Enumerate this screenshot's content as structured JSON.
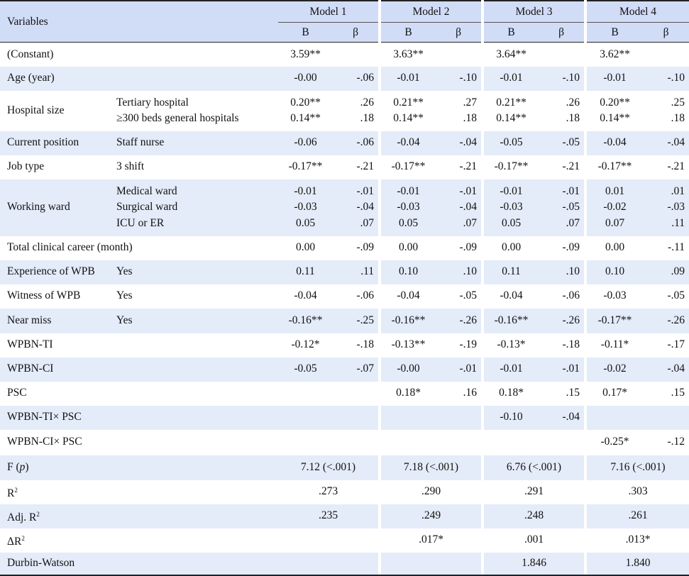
{
  "header": {
    "variables": "Variables",
    "models": [
      "Model 1",
      "Model 2",
      "Model 3",
      "Model 4"
    ],
    "sub": [
      "B",
      "β"
    ]
  },
  "rows": [
    {
      "var": "(Constant)",
      "cats": [
        ""
      ],
      "m": [
        [
          [
            "3.59**"
          ],
          [
            ""
          ]
        ],
        [
          [
            "3.63**"
          ],
          [
            ""
          ]
        ],
        [
          [
            "3.64**"
          ],
          [
            ""
          ]
        ],
        [
          [
            "3.62**"
          ],
          [
            ""
          ]
        ]
      ],
      "shade": "a"
    },
    {
      "var": "Age (year)",
      "cats": [
        ""
      ],
      "m": [
        [
          [
            "-0.00"
          ],
          [
            "-.06"
          ]
        ],
        [
          [
            "-0.01"
          ],
          [
            "-.10"
          ]
        ],
        [
          [
            "-0.01"
          ],
          [
            "-.10"
          ]
        ],
        [
          [
            "-0.01"
          ],
          [
            "-.10"
          ]
        ]
      ],
      "shade": "b"
    },
    {
      "var": "Hospital size",
      "cats": [
        "Tertiary hospital",
        "≥300 beds general hospitals"
      ],
      "m": [
        [
          [
            "0.20**",
            "0.14**"
          ],
          [
            ".26",
            ".18"
          ]
        ],
        [
          [
            "0.21**",
            "0.14**"
          ],
          [
            ".27",
            ".18"
          ]
        ],
        [
          [
            "0.21**",
            "0.14**"
          ],
          [
            ".26",
            ".18"
          ]
        ],
        [
          [
            "0.20**",
            "0.14**"
          ],
          [
            ".25",
            ".18"
          ]
        ]
      ],
      "shade": "a"
    },
    {
      "var": "Current position",
      "cats": [
        "Staff nurse"
      ],
      "m": [
        [
          [
            "-0.06"
          ],
          [
            "-.06"
          ]
        ],
        [
          [
            "-0.04"
          ],
          [
            "-.04"
          ]
        ],
        [
          [
            "-0.05"
          ],
          [
            "-.05"
          ]
        ],
        [
          [
            "-0.04"
          ],
          [
            "-.04"
          ]
        ]
      ],
      "shade": "b"
    },
    {
      "var": "Job type",
      "cats": [
        "3 shift"
      ],
      "m": [
        [
          [
            "-0.17**"
          ],
          [
            "-.21"
          ]
        ],
        [
          [
            "-0.17**"
          ],
          [
            "-.21"
          ]
        ],
        [
          [
            "-0.17**"
          ],
          [
            "-.21"
          ]
        ],
        [
          [
            "-0.17**"
          ],
          [
            "-.21"
          ]
        ]
      ],
      "shade": "a"
    },
    {
      "var": "Working ward",
      "cats": [
        "Medical ward",
        "Surgical ward",
        "ICU or ER"
      ],
      "m": [
        [
          [
            "-0.01",
            "-0.03",
            "0.05"
          ],
          [
            "-.01",
            "-.04",
            ".07"
          ]
        ],
        [
          [
            "-0.01",
            "-0.03",
            "0.05"
          ],
          [
            "-.01",
            "-.04",
            ".07"
          ]
        ],
        [
          [
            "-0.01",
            "-0.03",
            "0.05"
          ],
          [
            "-.01",
            "-.05",
            ".07"
          ]
        ],
        [
          [
            "0.01",
            "-0.02",
            "0.07"
          ],
          [
            ".01",
            "-.03",
            ".11"
          ]
        ]
      ],
      "shade": "b"
    },
    {
      "var": "Total clinical career (month)",
      "cats": [
        ""
      ],
      "m": [
        [
          [
            "0.00"
          ],
          [
            "-.09"
          ]
        ],
        [
          [
            "0.00"
          ],
          [
            "-.09"
          ]
        ],
        [
          [
            "0.00"
          ],
          [
            "-.09"
          ]
        ],
        [
          [
            "0.00"
          ],
          [
            "-.11"
          ]
        ]
      ],
      "shade": "a"
    },
    {
      "var": "Experience of WPB",
      "cats": [
        "Yes"
      ],
      "m": [
        [
          [
            "0.11"
          ],
          [
            ".11"
          ]
        ],
        [
          [
            "0.10"
          ],
          [
            ".10"
          ]
        ],
        [
          [
            "0.11"
          ],
          [
            ".10"
          ]
        ],
        [
          [
            "0.10"
          ],
          [
            ".09"
          ]
        ]
      ],
      "shade": "b"
    },
    {
      "var": "Witness of WPB",
      "cats": [
        "Yes"
      ],
      "m": [
        [
          [
            "-0.04"
          ],
          [
            "-.06"
          ]
        ],
        [
          [
            "-0.04"
          ],
          [
            "-.05"
          ]
        ],
        [
          [
            "-0.04"
          ],
          [
            "-.06"
          ]
        ],
        [
          [
            "-0.03"
          ],
          [
            "-.05"
          ]
        ]
      ],
      "shade": "a"
    },
    {
      "var": "Near miss",
      "cats": [
        "Yes"
      ],
      "m": [
        [
          [
            "-0.16**"
          ],
          [
            "-.25"
          ]
        ],
        [
          [
            "-0.16**"
          ],
          [
            "-.26"
          ]
        ],
        [
          [
            "-0.16**"
          ],
          [
            "-.26"
          ]
        ],
        [
          [
            "-0.17**"
          ],
          [
            "-.26"
          ]
        ]
      ],
      "shade": "b"
    },
    {
      "var": "WPBN-TI",
      "cats": [
        ""
      ],
      "m": [
        [
          [
            "-0.12*"
          ],
          [
            "-.18"
          ]
        ],
        [
          [
            "-0.13**"
          ],
          [
            "-.19"
          ]
        ],
        [
          [
            "-0.13*"
          ],
          [
            "-.18"
          ]
        ],
        [
          [
            "-0.11*"
          ],
          [
            "-.17"
          ]
        ]
      ],
      "shade": "a"
    },
    {
      "var": "WPBN-CI",
      "cats": [
        ""
      ],
      "m": [
        [
          [
            "-0.05"
          ],
          [
            "-.07"
          ]
        ],
        [
          [
            "-0.00"
          ],
          [
            "-.01"
          ]
        ],
        [
          [
            "-0.01"
          ],
          [
            "-.01"
          ]
        ],
        [
          [
            "-0.02"
          ],
          [
            "-.04"
          ]
        ]
      ],
      "shade": "b"
    },
    {
      "var": "PSC",
      "cats": [
        ""
      ],
      "m": [
        [
          [
            ""
          ],
          [
            ""
          ]
        ],
        [
          [
            "0.18*"
          ],
          [
            ".16"
          ]
        ],
        [
          [
            "0.18*"
          ],
          [
            ".15"
          ]
        ],
        [
          [
            "0.17*"
          ],
          [
            ".15"
          ]
        ]
      ],
      "shade": "a"
    },
    {
      "var": "WPBN-TI× PSC",
      "cats": [
        ""
      ],
      "m": [
        [
          [
            ""
          ],
          [
            ""
          ]
        ],
        [
          [
            ""
          ],
          [
            ""
          ]
        ],
        [
          [
            "-0.10"
          ],
          [
            "-.04"
          ]
        ],
        [
          [
            ""
          ],
          [
            ""
          ]
        ]
      ],
      "shade": "b"
    },
    {
      "var": "WPBN-CI× PSC",
      "cats": [
        ""
      ],
      "m": [
        [
          [
            ""
          ],
          [
            ""
          ]
        ],
        [
          [
            ""
          ],
          [
            ""
          ]
        ],
        [
          [
            ""
          ],
          [
            ""
          ]
        ],
        [
          [
            "-0.25*"
          ],
          [
            "-.12"
          ]
        ]
      ],
      "shade": "a"
    }
  ],
  "stats": [
    {
      "label": "F",
      "label_italic": "p",
      "values": [
        "7.12 (<.001)",
        "7.18 (<.001)",
        "6.76 (<.001)",
        "7.16 (<.001)"
      ],
      "shade": "b"
    },
    {
      "label": "R",
      "sup": "2",
      "values": [
        ".273",
        ".290",
        ".291",
        ".303"
      ],
      "shade": "a"
    },
    {
      "label": "Adj. R",
      "sup": "2",
      "values": [
        ".235",
        ".249",
        ".248",
        ".261"
      ],
      "shade": "b"
    },
    {
      "label": "ΔR",
      "sup": "2",
      "values": [
        "",
        ".017*",
        ".001",
        ".013*"
      ],
      "shade": "a"
    },
    {
      "label": "Durbin-Watson",
      "values": [
        "",
        "",
        "1.846",
        "1.840"
      ],
      "shade": "b"
    }
  ]
}
